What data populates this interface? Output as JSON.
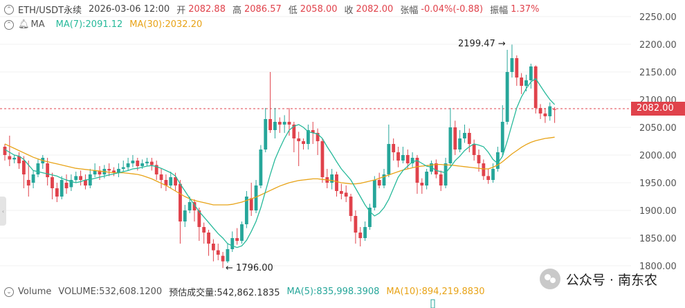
{
  "header": {
    "symbol": "ETH/USDT永续",
    "datetime": "2026-03-06 12:00",
    "open_label": "开",
    "open": "2082.88",
    "high_label": "高",
    "high": "2086.57",
    "low_label": "低",
    "low": "2058.00",
    "close_label": "收",
    "close": "2082.00",
    "change_label": "张幅",
    "change": "-0.04%(-0.88)",
    "amplitude_label": "振幅",
    "amplitude": "1.37%"
  },
  "indicator": {
    "name": "MA",
    "ma7": "MA(7):2091.12",
    "ma30": "MA(30):2032.20"
  },
  "volume": {
    "title": "Volume",
    "volume": "VOLUME:532,608.1200",
    "estimate": "预估成交量:542,862.1835",
    "ma5": "MA(5):835,998.3908",
    "ma10": "MA(10):894,219.8830"
  },
  "price_axis": [
    "2250.00",
    "2200.00",
    "2150.00",
    "2100.00",
    "2050.00",
    "2000.00",
    "1950.00",
    "1900.00",
    "1850.00",
    "1800.00"
  ],
  "current_price": "2082.00",
  "annotations": {
    "high": "2199.47 →",
    "low": "← 1796.00"
  },
  "watermark": "公众号 · 南东农",
  "colors": {
    "up": "#26a69a",
    "down": "#e0424b",
    "ma7": "#26b99a",
    "ma30": "#e8a317"
  },
  "chart_data": {
    "type": "candlestick",
    "y_axis": {
      "min": 1800,
      "max": 2250,
      "unit": "USDT"
    },
    "candles": [
      [
        2015,
        2000,
        2020,
        1990
      ],
      [
        1998,
        1992,
        2035,
        1980
      ],
      [
        1992,
        1995,
        2000,
        1985
      ],
      [
        1998,
        1985,
        2005,
        1975
      ],
      [
        1990,
        1965,
        1998,
        1940
      ],
      [
        1955,
        1945,
        1990,
        1925
      ],
      [
        1950,
        1965,
        1972,
        1940
      ],
      [
        1965,
        1985,
        1992,
        1960
      ],
      [
        1985,
        1995,
        2000,
        1975
      ],
      [
        1985,
        1960,
        1995,
        1945
      ],
      [
        1960,
        1940,
        1968,
        1920
      ],
      [
        1940,
        1925,
        1950,
        1915
      ],
      [
        1925,
        1955,
        1962,
        1920
      ],
      [
        1950,
        1940,
        1965,
        1930
      ],
      [
        1942,
        1955,
        1965,
        1935
      ],
      [
        1955,
        1962,
        1970,
        1950
      ],
      [
        1962,
        1955,
        1972,
        1945
      ],
      [
        1955,
        1945,
        1965,
        1938
      ],
      [
        1945,
        1965,
        1975,
        1940
      ],
      [
        1965,
        1972,
        1985,
        1960
      ],
      [
        1972,
        1965,
        1980,
        1955
      ],
      [
        1965,
        1975,
        1982,
        1958
      ],
      [
        1975,
        1972,
        1985,
        1962
      ],
      [
        1972,
        1968,
        1978,
        1962
      ],
      [
        1968,
        1975,
        1985,
        1960
      ],
      [
        1975,
        1978,
        1990,
        1970
      ],
      [
        1978,
        1985,
        1995,
        1972
      ],
      [
        1985,
        1990,
        2000,
        1978
      ],
      [
        1990,
        1980,
        1995,
        1972
      ],
      [
        1980,
        1985,
        1992,
        1975
      ],
      [
        1985,
        1988,
        1995,
        1980
      ],
      [
        1988,
        1982,
        1995,
        1972
      ],
      [
        1982,
        1965,
        1990,
        1955
      ],
      [
        1965,
        1955,
        1975,
        1940
      ],
      [
        1955,
        1945,
        1965,
        1935
      ],
      [
        1945,
        1960,
        1970,
        1940
      ],
      [
        1960,
        1945,
        1968,
        1935
      ],
      [
        1948,
        1880,
        1955,
        1840
      ],
      [
        1880,
        1900,
        1910,
        1870
      ],
      [
        1900,
        1915,
        1925,
        1895
      ],
      [
        1915,
        1900,
        1920,
        1880
      ],
      [
        1900,
        1870,
        1905,
        1845
      ],
      [
        1870,
        1860,
        1878,
        1840
      ],
      [
        1860,
        1840,
        1865,
        1818
      ],
      [
        1840,
        1828,
        1848,
        1808
      ],
      [
        1828,
        1820,
        1840,
        1810
      ],
      [
        1818,
        1808,
        1825,
        1796
      ],
      [
        1808,
        1830,
        1840,
        1805
      ],
      [
        1830,
        1850,
        1862,
        1825
      ],
      [
        1850,
        1845,
        1868,
        1838
      ],
      [
        1845,
        1875,
        1880,
        1840
      ],
      [
        1875,
        1925,
        1935,
        1868
      ],
      [
        1922,
        1900,
        1950,
        1890
      ],
      [
        1900,
        1945,
        1955,
        1895
      ],
      [
        1945,
        2010,
        2018,
        1940
      ],
      [
        2010,
        2065,
        2085,
        2005
      ],
      [
        2065,
        2045,
        2150,
        2040
      ],
      [
        2045,
        2060,
        2085,
        2030
      ],
      [
        2060,
        2055,
        2068,
        2040
      ],
      [
        2055,
        2060,
        2072,
        2040
      ],
      [
        2060,
        2055,
        2085,
        2035
      ],
      [
        2055,
        2030,
        2060,
        2005
      ],
      [
        2030,
        2025,
        2042,
        1980
      ],
      [
        2025,
        2020,
        2030,
        2010
      ],
      [
        2020,
        2045,
        2055,
        2010
      ],
      [
        2045,
        2040,
        2060,
        2020
      ],
      [
        2040,
        2025,
        2048,
        2000
      ],
      [
        2025,
        1960,
        2030,
        1950
      ],
      [
        1960,
        1950,
        1975,
        1940
      ],
      [
        1950,
        1965,
        1975,
        1938
      ],
      [
        1965,
        1935,
        1970,
        1925
      ],
      [
        1935,
        1930,
        1948,
        1920
      ],
      [
        1932,
        1925,
        1945,
        1915
      ],
      [
        1925,
        1890,
        1930,
        1880
      ],
      [
        1890,
        1860,
        1900,
        1840
      ],
      [
        1860,
        1850,
        1870,
        1835
      ],
      [
        1850,
        1870,
        1880,
        1845
      ],
      [
        1870,
        1905,
        1912,
        1865
      ],
      [
        1905,
        1955,
        1962,
        1900
      ],
      [
        1955,
        1945,
        1968,
        1940
      ],
      [
        1945,
        1965,
        1975,
        1940
      ],
      [
        1965,
        2020,
        2055,
        1960
      ],
      [
        2020,
        2005,
        2030,
        1990
      ],
      [
        2005,
        1990,
        2015,
        1978
      ],
      [
        1990,
        2000,
        2015,
        1985
      ],
      [
        2000,
        1985,
        2010,
        1975
      ],
      [
        1985,
        1995,
        2005,
        1978
      ],
      [
        1995,
        1950,
        2000,
        1930
      ],
      [
        1950,
        1945,
        1958,
        1930
      ],
      [
        1945,
        1970,
        1975,
        1938
      ],
      [
        1970,
        1985,
        1990,
        1965
      ],
      [
        1985,
        1965,
        1992,
        1958
      ],
      [
        1965,
        1945,
        1972,
        1935
      ],
      [
        1945,
        1985,
        1995,
        1940
      ],
      [
        1985,
        2050,
        2085,
        1980
      ],
      [
        2050,
        2010,
        2062,
        2000
      ],
      [
        2010,
        2030,
        2045,
        2005
      ],
      [
        2030,
        2040,
        2055,
        2022
      ],
      [
        2040,
        2020,
        2048,
        2005
      ],
      [
        2020,
        2000,
        2028,
        1990
      ],
      [
        2000,
        1985,
        2010,
        1970
      ],
      [
        1985,
        1962,
        1992,
        1955
      ],
      [
        1962,
        1955,
        1975,
        1948
      ],
      [
        1955,
        1975,
        1985,
        1950
      ],
      [
        1975,
        2005,
        2015,
        1970
      ],
      [
        2005,
        2060,
        2090,
        1998
      ],
      [
        2060,
        2150,
        2190,
        2055
      ],
      [
        2150,
        2175,
        2199.47,
        2140
      ],
      [
        2175,
        2140,
        2180,
        2125
      ],
      [
        2140,
        2125,
        2148,
        2110
      ],
      [
        2125,
        2135,
        2145,
        2115
      ],
      [
        2135,
        2160,
        2165,
        2120
      ],
      [
        2160,
        2085,
        2162,
        2075
      ],
      [
        2085,
        2075,
        2092,
        2065
      ],
      [
        2075,
        2070,
        2085,
        2058
      ],
      [
        2070,
        2088,
        2095,
        2062
      ],
      [
        2082.88,
        2082,
        2086.57,
        2058
      ]
    ],
    "ma7": [
      2010,
      2005,
      2000,
      1998,
      1992,
      1982,
      1972,
      1970,
      1968,
      1966,
      1964,
      1962,
      1958,
      1955,
      1952,
      1950,
      1952,
      1955,
      1956,
      1958,
      1960,
      1962,
      1964,
      1966,
      1968,
      1970,
      1972,
      1975,
      1976,
      1978,
      1980,
      1981,
      1979,
      1976,
      1972,
      1968,
      1962,
      1948,
      1935,
      1922,
      1910,
      1898,
      1888,
      1878,
      1868,
      1858,
      1850,
      1840,
      1836,
      1833,
      1836,
      1846,
      1862,
      1880,
      1905,
      1935,
      1965,
      1992,
      2012,
      2030,
      2045,
      2052,
      2055,
      2050,
      2042,
      2040,
      2038,
      2030,
      2015,
      2002,
      1988,
      1975,
      1965,
      1955,
      1940,
      1925,
      1910,
      1898,
      1890,
      1895,
      1905,
      1920,
      1940,
      1960,
      1972,
      1980,
      1988,
      1990,
      1985,
      1980,
      1978,
      1972,
      1970,
      1968,
      1978,
      1990,
      1998,
      2008,
      2015,
      2020,
      2018,
      2015,
      2005,
      1992,
      1985,
      1998,
      2025,
      2055,
      2085,
      2105,
      2120,
      2132,
      2138,
      2125,
      2112,
      2100,
      2091.12
    ],
    "ma30": [
      2020,
      2016,
      2012,
      2008,
      2004,
      2000,
      1996,
      1993,
      1990,
      1988,
      1986,
      1984,
      1982,
      1980,
      1978,
      1976,
      1975,
      1974,
      1973,
      1972,
      1971,
      1970,
      1969,
      1968,
      1968,
      1968,
      1967,
      1966,
      1965,
      1963,
      1960,
      1957,
      1953,
      1949,
      1945,
      1940,
      1935,
      1930,
      1925,
      1921,
      1918,
      1916,
      1914,
      1912,
      1910,
      1910,
      1910,
      1910,
      1911,
      1913,
      1915,
      1918,
      1921,
      1924,
      1928,
      1932,
      1936,
      1940,
      1944,
      1947,
      1950,
      1952,
      1954,
      1955,
      1956,
      1957,
      1957,
      1956,
      1955,
      1954,
      1952,
      1950,
      1949,
      1948,
      1948,
      1949,
      1951,
      1953,
      1955,
      1958,
      1961,
      1964,
      1967,
      1970,
      1973,
      1975,
      1977,
      1979,
      1980,
      1981,
      1982,
      1983,
      1983,
      1982,
      1982,
      1981,
      1980,
      1979,
      1978,
      1977,
      1976,
      1975,
      1975,
      1978,
      1982,
      1988,
      1995,
      2002,
      2008,
      2014,
      2019,
      2023,
      2026,
      2028,
      2030,
      2031,
      2032.2
    ],
    "volume_series": {
      "ma5": 835998.3908,
      "ma10": 894219.883,
      "last": 532608.12
    }
  }
}
